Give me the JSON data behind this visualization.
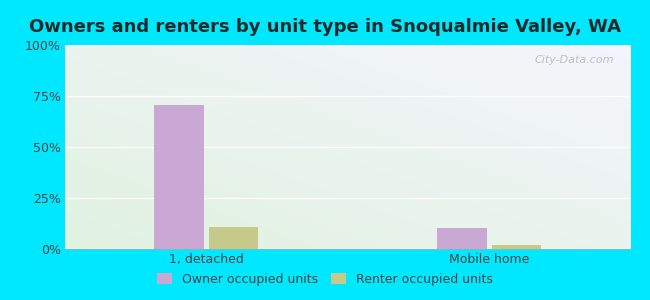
{
  "title": "Owners and renters by unit type in Snoqualmie Valley, WA",
  "categories": [
    "1, detached",
    "Mobile home"
  ],
  "owner_values": [
    70.5,
    10.5
  ],
  "renter_values": [
    11.0,
    2.0
  ],
  "owner_color": "#c9a8d4",
  "renter_color": "#c5c98a",
  "bar_width": 0.35,
  "ylim": [
    0,
    100
  ],
  "yticks": [
    0,
    25,
    50,
    75,
    100
  ],
  "ytick_labels": [
    "0%",
    "25%",
    "50%",
    "75%",
    "100%"
  ],
  "legend_owner": "Owner occupied units",
  "legend_renter": "Renter occupied units",
  "bg_outer": "#00e8ff",
  "watermark": "City-Data.com",
  "title_fontsize": 13,
  "tick_fontsize": 9,
  "legend_fontsize": 9,
  "title_color": "#1a2a2a",
  "tick_color": "#444444"
}
